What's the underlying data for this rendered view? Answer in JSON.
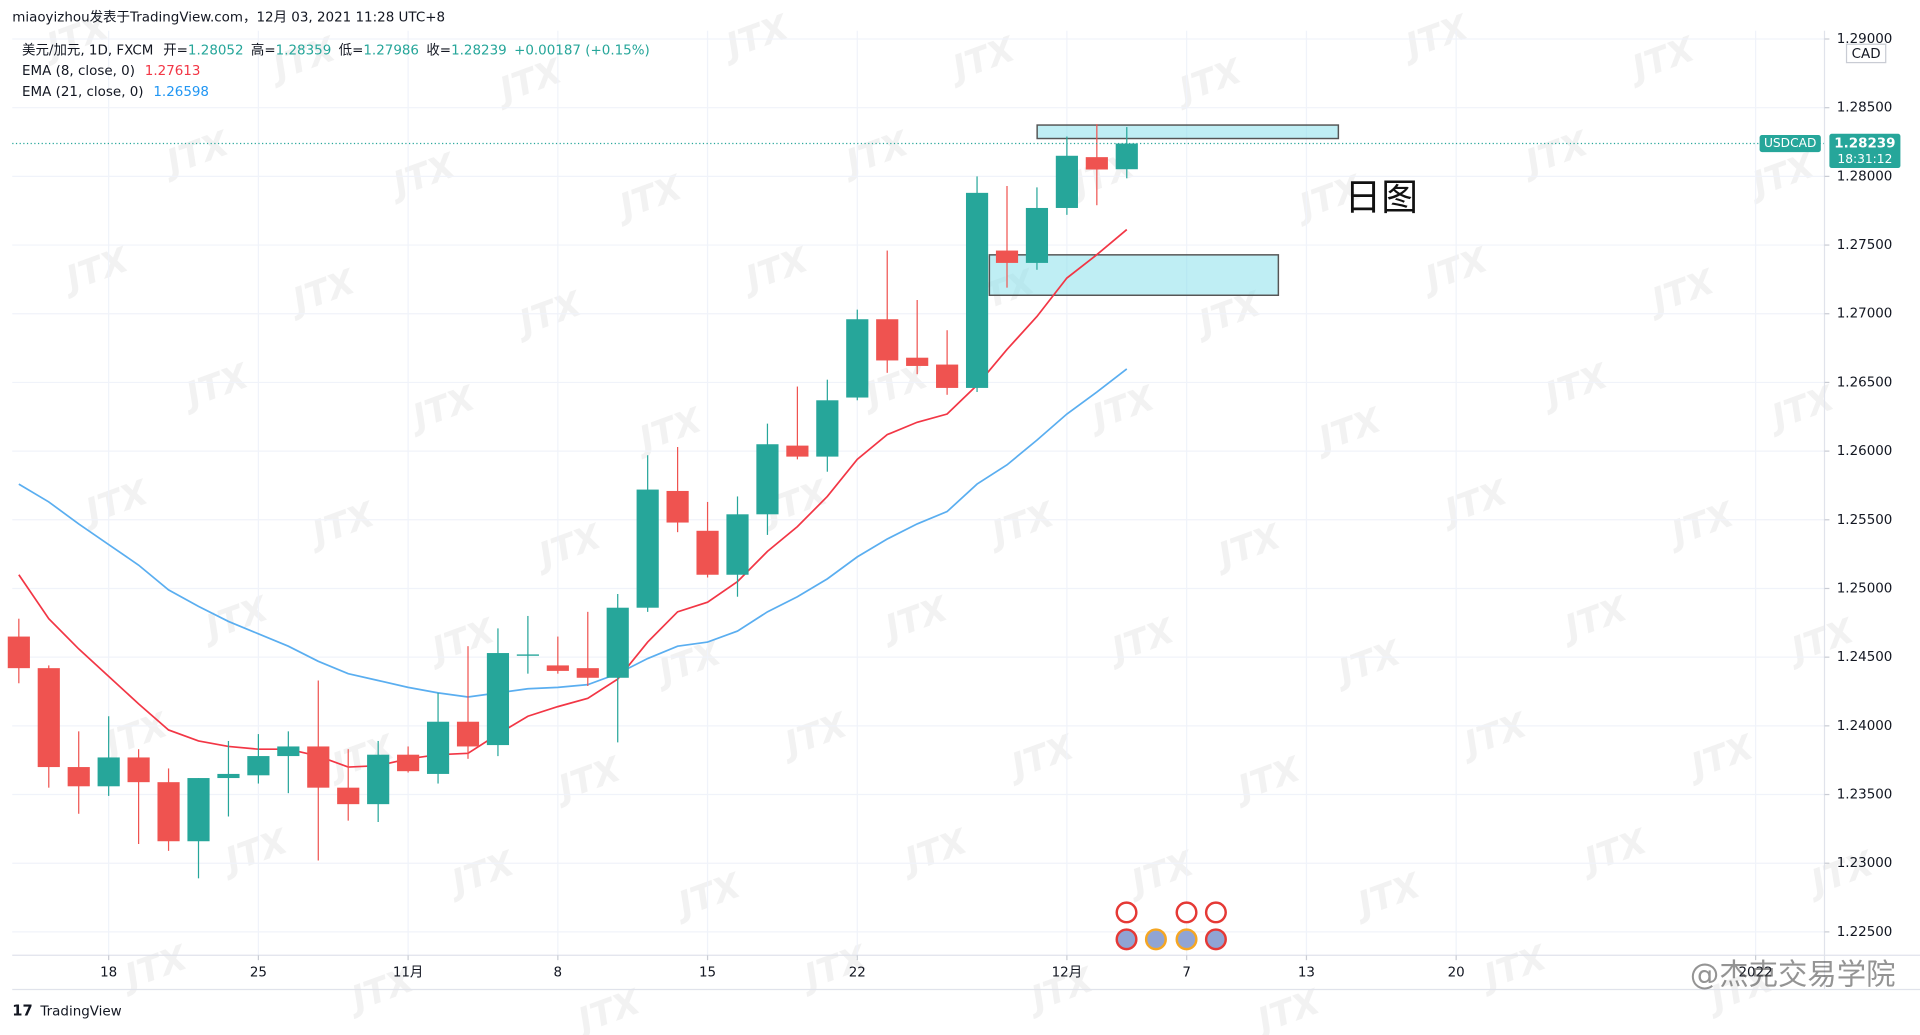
{
  "header": "miaoyizhou发表于TradingView.com，12月 03, 2021 11:28 UTC+8",
  "footer_logo": "TradingView",
  "watermark": "JTX",
  "credit": "@杰克交易学院",
  "chart_data": {
    "type": "candlestick",
    "symbol_label": "美元/加元, 1D, FXCM",
    "ohlc_labels": [
      "开=",
      "高=",
      "低=",
      "收="
    ],
    "change_label": "+0.00187 (+0.15%)",
    "annotation": "日图",
    "price_tag": {
      "symbol": "USDCAD",
      "countdown": "18:31:12"
    },
    "currency": "CAD",
    "up_color": "#26a69a",
    "down_color": "#ef5350",
    "open": [
      1.2465,
      1.2442,
      1.237,
      1.2356,
      1.2377,
      1.2359,
      1.2316,
      1.2362,
      1.2364,
      1.2378,
      1.2385,
      1.2355,
      1.2343,
      1.2379,
      1.2365,
      1.2403,
      1.2386,
      1.2451,
      1.2444,
      1.2442,
      1.2435,
      1.2486,
      1.2571,
      1.2542,
      1.251,
      1.2554,
      1.2604,
      1.2596,
      1.2639,
      1.2696,
      1.2668,
      1.2663,
      1.2646,
      1.2746,
      1.2737,
      1.2777,
      1.2814,
      1.28052
    ],
    "high": [
      1.2478,
      1.2444,
      1.2396,
      1.2407,
      1.2383,
      1.2369,
      1.2362,
      1.2389,
      1.2394,
      1.2396,
      1.2433,
      1.2383,
      1.2389,
      1.2385,
      1.2424,
      1.2458,
      1.2471,
      1.248,
      1.2465,
      1.2483,
      1.2496,
      1.2597,
      1.2603,
      1.2563,
      1.2567,
      1.262,
      1.2647,
      1.2652,
      1.2703,
      1.2746,
      1.271,
      1.2688,
      1.28,
      1.2793,
      1.2792,
      1.2829,
      1.2838,
      1.28359
    ],
    "low": [
      1.2431,
      1.2355,
      1.2336,
      1.2349,
      1.2314,
      1.2309,
      1.2289,
      1.2334,
      1.2358,
      1.2351,
      1.2302,
      1.2331,
      1.233,
      1.2366,
      1.2358,
      1.2376,
      1.2378,
      1.2438,
      1.2438,
      1.2429,
      1.2388,
      1.2483,
      1.2541,
      1.2508,
      1.2494,
      1.2539,
      1.2594,
      1.2585,
      1.2637,
      1.2657,
      1.2656,
      1.2641,
      1.2643,
      1.2719,
      1.2732,
      1.2772,
      1.2779,
      1.27986
    ],
    "close": [
      1.2442,
      1.237,
      1.2356,
      1.2377,
      1.2359,
      1.2316,
      1.2362,
      1.2365,
      1.2378,
      1.2385,
      1.2355,
      1.2343,
      1.2379,
      1.2367,
      1.2403,
      1.2385,
      1.2453,
      1.2452,
      1.244,
      1.2435,
      1.2486,
      1.2572,
      1.2548,
      1.251,
      1.2554,
      1.2605,
      1.2596,
      1.2637,
      1.2696,
      1.2666,
      1.2662,
      1.2646,
      1.2788,
      1.2737,
      1.2777,
      1.2815,
      1.2805,
      1.28239
    ],
    "series": [
      {
        "name": "EMA (8, close, 0)",
        "color": "#f23645",
        "values": [
          1.251,
          1.2478,
          1.2456,
          1.2436,
          1.2416,
          1.2397,
          1.2389,
          1.2385,
          1.2383,
          1.2383,
          1.2378,
          1.237,
          1.2371,
          1.2376,
          1.2379,
          1.238,
          1.2394,
          1.2407,
          1.2414,
          1.242,
          1.2434,
          1.2461,
          1.2483,
          1.249,
          1.2505,
          1.2527,
          1.2545,
          1.2567,
          1.2594,
          1.2612,
          1.2621,
          1.2627,
          1.2648,
          1.2674,
          1.2698,
          1.2726,
          1.2743,
          1.27613
        ]
      },
      {
        "name": "EMA (21, close, 0)",
        "color": "#5aaef0",
        "values": [
          1.2576,
          1.2563,
          1.2547,
          1.2532,
          1.2517,
          1.2499,
          1.2487,
          1.2476,
          1.2467,
          1.2458,
          1.2447,
          1.2438,
          1.2433,
          1.2428,
          1.2424,
          1.2421,
          1.2424,
          1.2427,
          1.2428,
          1.243,
          1.2438,
          1.2449,
          1.2458,
          1.2461,
          1.2469,
          1.2483,
          1.2494,
          1.2507,
          1.2523,
          1.2536,
          1.2547,
          1.2556,
          1.2576,
          1.259,
          1.2608,
          1.2627,
          1.2643,
          1.26598
        ]
      }
    ],
    "xlim": [
      -0.22,
      60.3
    ],
    "xticks": [
      {
        "value": 3,
        "label": "18"
      },
      {
        "value": 8,
        "label": "25"
      },
      {
        "value": 13,
        "label": "11月"
      },
      {
        "value": 18,
        "label": "8"
      },
      {
        "value": 23,
        "label": "15"
      },
      {
        "value": 28,
        "label": "22"
      },
      {
        "value": 35,
        "label": "12月"
      },
      {
        "value": 39,
        "label": "7"
      },
      {
        "value": 43,
        "label": "13"
      },
      {
        "value": 48,
        "label": "20"
      },
      {
        "value": 58,
        "label": "2022"
      }
    ],
    "ylim": [
      1.2233,
      1.2906
    ],
    "yticks": [
      {
        "value": 1.225,
        "label": "1.22500"
      },
      {
        "value": 1.23,
        "label": "1.23000"
      },
      {
        "value": 1.235,
        "label": "1.23500"
      },
      {
        "value": 1.24,
        "label": "1.24000"
      },
      {
        "value": 1.245,
        "label": "1.24500"
      },
      {
        "value": 1.25,
        "label": "1.25000"
      },
      {
        "value": 1.255,
        "label": "1.25500"
      },
      {
        "value": 1.26,
        "label": "1.26000"
      },
      {
        "value": 1.265,
        "label": "1.26500"
      },
      {
        "value": 1.27,
        "label": "1.27000"
      },
      {
        "value": 1.275,
        "label": "1.27500"
      },
      {
        "value": 1.28,
        "label": "1.28000"
      },
      {
        "value": 1.285,
        "label": "1.28500"
      },
      {
        "value": 1.29,
        "label": "1.29000"
      }
    ],
    "grid": true
  }
}
